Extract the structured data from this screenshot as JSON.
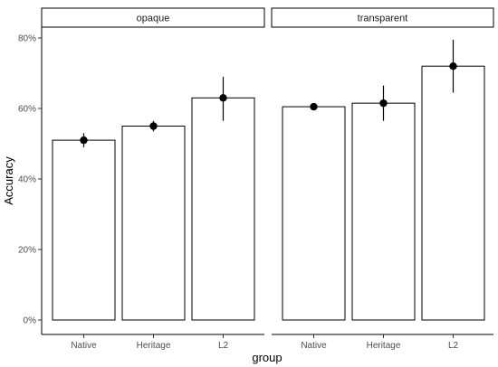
{
  "chart_data": {
    "type": "bar",
    "xlabel": "group",
    "ylabel": "Accuracy",
    "ylim": [
      0,
      0.8
    ],
    "yticks": [
      0,
      0.2,
      0.4,
      0.6,
      0.8
    ],
    "ytick_labels": [
      "0%",
      "20%",
      "40%",
      "60%",
      "80%"
    ],
    "categories": [
      "Native",
      "Heritage",
      "L2"
    ],
    "panels": [
      {
        "facet": "opaque",
        "values": [
          0.51,
          0.55,
          0.63
        ],
        "error_low": [
          0.49,
          0.535,
          0.565
        ],
        "error_high": [
          0.53,
          0.565,
          0.69
        ]
      },
      {
        "facet": "transparent",
        "values": [
          0.605,
          0.615,
          0.72
        ],
        "error_low": [
          0.595,
          0.565,
          0.645
        ],
        "error_high": [
          0.615,
          0.665,
          0.795
        ]
      }
    ],
    "bar_fill": "#ffffff",
    "bar_stroke": "#000000",
    "strip_fill": "#ffffff",
    "grid": false
  }
}
